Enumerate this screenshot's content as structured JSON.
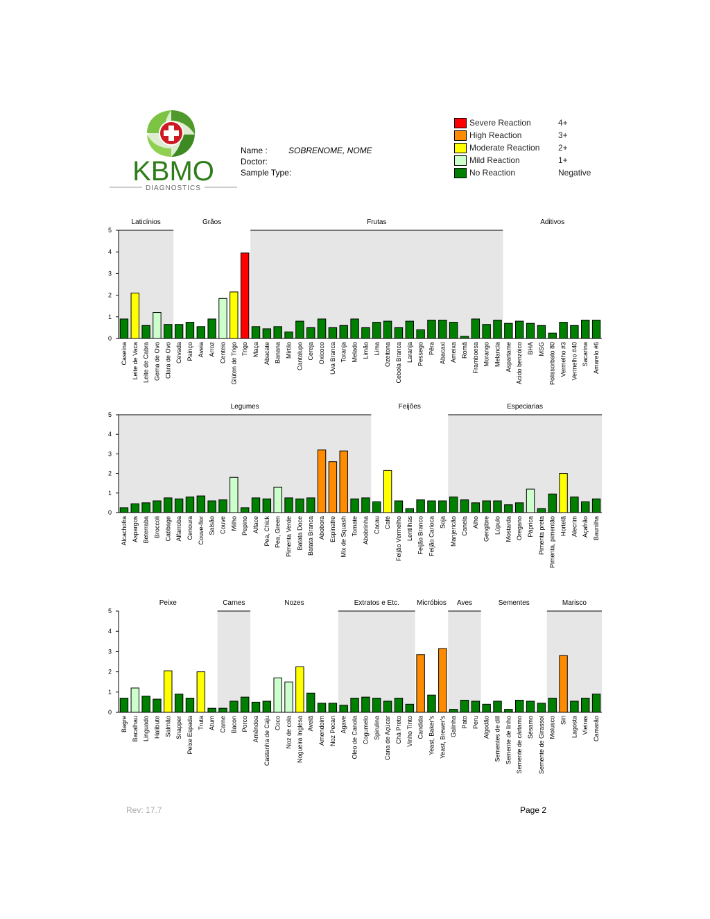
{
  "header": {
    "logo_text": "KBMO",
    "logo_subtext": "DIAGNOSTICS",
    "name_label": "Name :",
    "name_value": "SOBRENOME, NOME",
    "doctor_label": "Doctor:",
    "sample_label": "Sample Type:"
  },
  "legend": [
    {
      "label": "Severe Reaction",
      "score": "4+",
      "color": "#ff0000"
    },
    {
      "label": "High Reaction",
      "score": "3+",
      "color": "#ff8c00"
    },
    {
      "label": "Moderate Reaction",
      "score": "2+",
      "color": "#ffff00"
    },
    {
      "label": "Mild Reaction",
      "score": "1+",
      "color": "#ccffcc"
    },
    {
      "label": "No Reaction",
      "score": "Negative",
      "color": "#008000"
    }
  ],
  "colors": {
    "none": "#008000",
    "mild": "#ccffcc",
    "moderate": "#ffff00",
    "high": "#ff8c00",
    "severe": "#ff0000",
    "shade": "#e6e6e6"
  },
  "footer": {
    "rev": "Rev: 17.7",
    "page": "Page 2"
  },
  "chart_data": [
    {
      "type": "bar",
      "ylim": [
        0,
        5
      ],
      "yticks": [
        "0",
        "1",
        "2",
        "3",
        "4",
        "5"
      ],
      "groups": [
        {
          "name": "Laticínios",
          "count": 5,
          "shaded": true
        },
        {
          "name": "Grãos",
          "count": 7,
          "shaded": false
        },
        {
          "name": "Frutas",
          "count": 23,
          "shaded": true
        },
        {
          "name": "Aditivos",
          "count": 9,
          "shaded": false
        }
      ],
      "categories": [
        "Caseína",
        "Leite de Vaca",
        "Leite de Cabra",
        "Gema de Ovo",
        "Clara de Ovo",
        "Cevada",
        "Painço",
        "Aveia",
        "Arroz",
        "Centeio",
        "Glúten de Trigo",
        "Trigo",
        "Maça",
        "Abacate",
        "Banana",
        "Mirtilo",
        "Cantalupo",
        "Cereja",
        "Oxicoco",
        "Uva Branca",
        "Toranja",
        "Melado",
        "Limão",
        "Lima",
        "Ozeitona",
        "Cebola Branca",
        "Laranja",
        "Pessego",
        "Pêra",
        "Abacaxi",
        "Ameixa",
        "Romã",
        "Framboesa",
        "Morango",
        "Melancia",
        "Aspartame",
        "Ácido benzóico",
        "BHA",
        "MSG",
        "Polissorbato 80",
        "Vermelho #3",
        "Vermelho #40",
        "Sacarina",
        "Amarelo #6"
      ],
      "values": [
        0.9,
        2.1,
        0.6,
        1.2,
        0.65,
        0.65,
        0.75,
        0.55,
        0.9,
        1.85,
        2.15,
        3.95,
        0.55,
        0.45,
        0.55,
        0.3,
        0.8,
        0.5,
        0.9,
        0.5,
        0.6,
        0.9,
        0.5,
        0.75,
        0.8,
        0.5,
        0.8,
        0.4,
        0.85,
        0.85,
        0.75,
        0.1,
        0.9,
        0.65,
        0.85,
        0.7,
        0.8,
        0.7,
        0.6,
        0.25,
        0.75,
        0.6,
        0.85,
        0.85
      ]
    },
    {
      "type": "bar",
      "ylim": [
        0,
        5
      ],
      "yticks": [
        "0",
        "1",
        "2",
        "3",
        "4",
        "5"
      ],
      "groups": [
        {
          "name": "Legumes",
          "count": 23,
          "shaded": true
        },
        {
          "name": "Feijões",
          "count": 7,
          "shaded": false
        },
        {
          "name": "Especiarias",
          "count": 14,
          "shaded": true
        }
      ],
      "categories": [
        "Alcachofra",
        "Aspargos",
        "Beterraba",
        "Broccoli",
        "Cabbage",
        "Alfarroba",
        "Cenoura",
        "Couve-flor",
        "Salsão",
        "Couve",
        "Milho",
        "Pepino",
        "Alface",
        "Pea, Chick",
        "Pea, Green",
        "Pimenta Verde",
        "Batata Doce",
        "Batata Branca",
        "Abobora",
        "Espinafre",
        "Mix de Squash",
        "Tomate",
        "Abobrinha",
        "Cacau",
        "Café",
        "Feijão Vermelho",
        "Lentilhas",
        "Feijão Branco",
        "Feijão Carioca",
        "Soja",
        "Manjericão",
        "Canela",
        "Alho",
        "Gengibre",
        "Lúpulo",
        "Mostarda",
        "Oregano",
        "Páprica",
        "Pimenta preta",
        "Pimenta, pimentão",
        "Hortelã",
        "Alecrim",
        "Açafrão",
        "Baunilha"
      ],
      "values": [
        0.25,
        0.45,
        0.5,
        0.6,
        0.75,
        0.7,
        0.8,
        0.85,
        0.6,
        0.65,
        1.8,
        0.25,
        0.75,
        0.7,
        1.3,
        0.75,
        0.7,
        0.75,
        3.2,
        2.6,
        3.15,
        0.7,
        0.75,
        0.55,
        2.15,
        0.6,
        0.2,
        0.65,
        0.6,
        0.6,
        0.8,
        0.65,
        0.5,
        0.6,
        0.6,
        0.4,
        0.5,
        1.2,
        0.2,
        0.95,
        2.0,
        0.8,
        0.55,
        0.7
      ]
    },
    {
      "type": "bar",
      "ylim": [
        0,
        5
      ],
      "yticks": [
        "0",
        "1",
        "2",
        "3",
        "4",
        "5"
      ],
      "groups": [
        {
          "name": "Peixe",
          "count": 9,
          "shaded": false
        },
        {
          "name": "Carnes",
          "count": 3,
          "shaded": true
        },
        {
          "name": "Nozes",
          "count": 8,
          "shaded": false
        },
        {
          "name": "Extratos e Etc.",
          "count": 7,
          "shaded": true
        },
        {
          "name": "Micróbios",
          "count": 3,
          "shaded": false
        },
        {
          "name": "Aves",
          "count": 3,
          "shaded": true
        },
        {
          "name": "Sementes",
          "count": 6,
          "shaded": false
        },
        {
          "name": "Marisco",
          "count": 5,
          "shaded": true
        }
      ],
      "categories": [
        "Bagre",
        "Bacalhau",
        "Linguado",
        "Halibute",
        "Salmão",
        "Snapper",
        "Peixe Espada",
        "Truta",
        "Atum",
        "Carne",
        "Bacon",
        "Porco",
        "Amêndoa",
        "Castanha de Caju",
        "Coco",
        "Noz de cola",
        "Nogueira Inglesa",
        "Avelã",
        "Amendoim",
        "Noz Pecan",
        "Agave",
        "Oleo de Canola",
        "Cogumelo",
        "Spirulina",
        "Cana de Açúcar",
        "Chá Preto",
        "Vinho Tinto",
        "Candida",
        "Yeast, Baker's",
        "Yeast, Brewer's",
        "Galinha",
        "Pato",
        "Peru",
        "Algodão",
        "Sementes de dill",
        "Semente de linho",
        "Semente de cártamo",
        "Sésamo",
        "Semente de Girassol",
        "Molusco",
        "Siri",
        "Lagosta",
        "Vieiras",
        "Camarão"
      ],
      "values": [
        0.7,
        1.2,
        0.8,
        0.65,
        2.05,
        0.9,
        0.7,
        2.0,
        0.2,
        0.2,
        0.55,
        0.75,
        0.5,
        0.55,
        1.7,
        1.5,
        2.25,
        0.95,
        0.45,
        0.45,
        0.35,
        0.7,
        0.75,
        0.7,
        0.55,
        0.7,
        0.4,
        2.85,
        0.85,
        3.15,
        0.15,
        0.6,
        0.55,
        0.4,
        0.55,
        0.15,
        0.6,
        0.55,
        0.45,
        0.7,
        2.8,
        0.55,
        0.7,
        0.9
      ]
    }
  ]
}
